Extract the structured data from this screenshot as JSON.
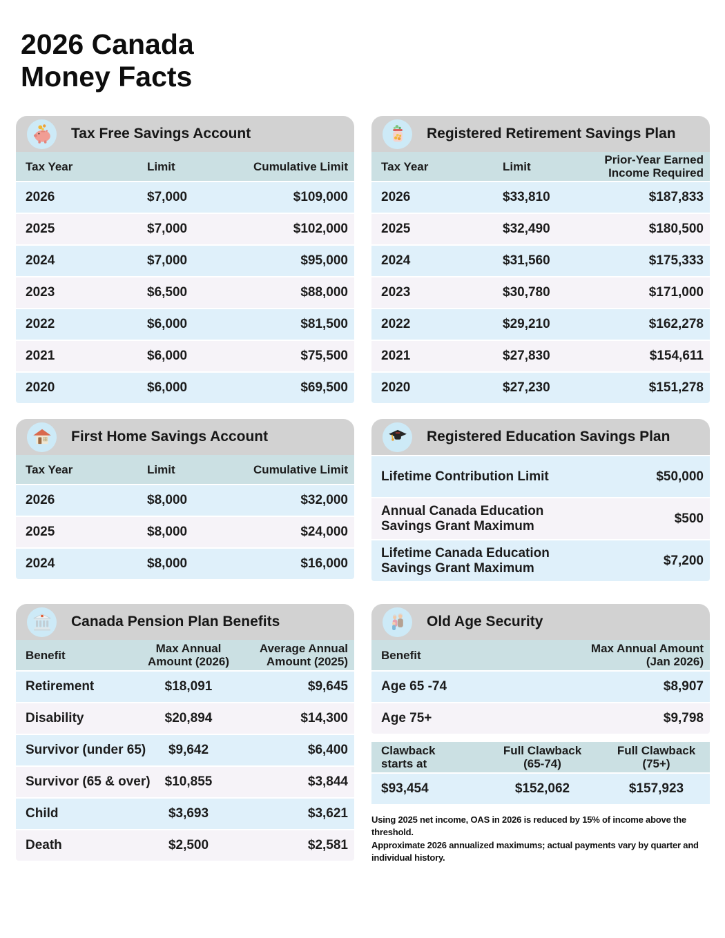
{
  "title": "2026 Canada\nMoney Facts",
  "palette": {
    "header_gray": "#d2d2d2",
    "teal": "#cbe0e3",
    "row_blue": "#dff0fa",
    "row_pink": "#f6f3f8",
    "circle_blue": "#cdeaf7",
    "text": "#1b1b1b"
  },
  "panels": {
    "tfsa": {
      "title": "Tax Free Savings Account",
      "icon": "piggy-bank",
      "columns": [
        "Tax Year",
        "Limit",
        "Cumulative Limit"
      ],
      "rows": [
        [
          "2026",
          "$7,000",
          "$109,000"
        ],
        [
          "2025",
          "$7,000",
          "$102,000"
        ],
        [
          "2024",
          "$7,000",
          "$95,000"
        ],
        [
          "2023",
          "$6,500",
          "$88,000"
        ],
        [
          "2022",
          "$6,000",
          "$81,500"
        ],
        [
          "2021",
          "$6,000",
          "$75,500"
        ],
        [
          "2020",
          "$6,000",
          "$69,500"
        ]
      ]
    },
    "rrsp": {
      "title": "Registered Retirement Savings Plan",
      "icon": "savings-jar",
      "columns": [
        "Tax Year",
        "Limit",
        "Prior-Year Earned\nIncome Required"
      ],
      "rows": [
        [
          "2026",
          "$33,810",
          "$187,833"
        ],
        [
          "2025",
          "$32,490",
          "$180,500"
        ],
        [
          "2024",
          "$31,560",
          "$175,333"
        ],
        [
          "2023",
          "$30,780",
          "$171,000"
        ],
        [
          "2022",
          "$29,210",
          "$162,278"
        ],
        [
          "2021",
          "$27,830",
          "$154,611"
        ],
        [
          "2020",
          "$27,230",
          "$151,278"
        ]
      ]
    },
    "fhsa": {
      "title": "First Home Savings Account",
      "icon": "house",
      "columns": [
        "Tax Year",
        "Limit",
        "Cumulative Limit"
      ],
      "rows": [
        [
          "2026",
          "$8,000",
          "$32,000"
        ],
        [
          "2025",
          "$8,000",
          "$24,000"
        ],
        [
          "2024",
          "$8,000",
          "$16,000"
        ]
      ]
    },
    "resp": {
      "title": "Registered Education Savings Plan",
      "icon": "graduation-cap",
      "rows": [
        [
          "Lifetime Contribution Limit",
          "$50,000"
        ],
        [
          "Annual Canada Education Savings Grant Maximum",
          "$500"
        ],
        [
          "Lifetime Canada Education Savings Grant Maximum",
          "$7,200"
        ]
      ]
    },
    "cpp": {
      "title": "Canada Pension Plan Benefits",
      "icon": "bank-building",
      "columns": [
        "Benefit",
        "Max Annual\nAmount (2026)",
        "Average Annual\nAmount (2025)"
      ],
      "rows": [
        [
          "Retirement",
          "$18,091",
          "$9,645"
        ],
        [
          "Disability",
          "$20,894",
          "$14,300"
        ],
        [
          "Survivor (under 65)",
          "$9,642",
          "$6,400"
        ],
        [
          "Survivor (65 & over)",
          "$10,855",
          "$3,844"
        ],
        [
          "Child",
          "$3,693",
          "$3,621"
        ],
        [
          "Death",
          "$2,500",
          "$2,581"
        ]
      ]
    },
    "oas": {
      "title": "Old Age Security",
      "icon": "family",
      "columns": [
        "Benefit",
        "Max Annual Amount\n(Jan 2026)"
      ],
      "rows": [
        [
          "Age 65 -74",
          "$8,907"
        ],
        [
          "Age 75+",
          "$9,798"
        ]
      ],
      "clawback_columns": [
        "Clawback\nstarts at",
        "Full Clawback\n(65-74)",
        "Full Clawback\n(75+)"
      ],
      "clawback_rows": [
        [
          "$93,454",
          "$152,062",
          "$157,923"
        ]
      ],
      "footnotes": [
        "Using 2025 net income, OAS in 2026 is reduced by 15% of income above the threshold.",
        "Approximate 2026 annualized maximums; actual payments vary by quarter and individual history."
      ]
    }
  }
}
